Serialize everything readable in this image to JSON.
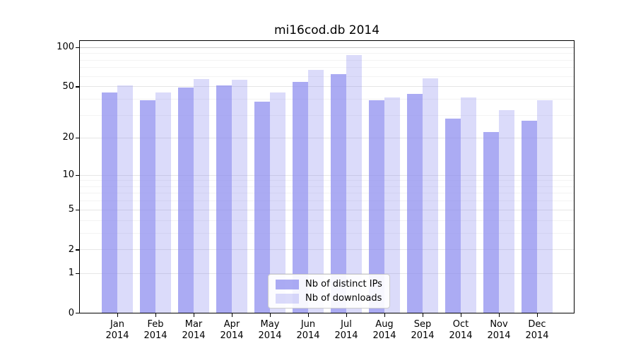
{
  "chart_data": {
    "type": "bar",
    "title": "mi16cod.db 2014",
    "months": [
      "Jan",
      "Feb",
      "Mar",
      "Apr",
      "May",
      "Jun",
      "Jul",
      "Aug",
      "Sep",
      "Oct",
      "Nov",
      "Dec"
    ],
    "year_label": "2014",
    "series": [
      {
        "name": "Nb of distinct IPs",
        "color": "rgba(136,136,238,0.7)",
        "values": [
          45,
          39,
          49,
          51,
          38,
          54,
          62,
          39,
          44,
          28,
          22,
          27
        ]
      },
      {
        "name": "Nb of downloads",
        "color": "rgba(136,136,238,0.3)",
        "values": [
          51,
          45,
          57,
          56,
          45,
          67,
          87,
          41,
          58,
          41,
          33,
          39
        ]
      }
    ],
    "y_scale": "log1p",
    "y_ticks": [
      0,
      1,
      2,
      5,
      10,
      20,
      50,
      100
    ],
    "y_minor_ticks": [
      3,
      4,
      6,
      7,
      8,
      9,
      30,
      40,
      60,
      70,
      80,
      90
    ],
    "ylim": [
      0,
      111
    ],
    "grid": true,
    "legend_position": "lower center",
    "colors": {
      "bar_base": "#8888ee",
      "grid_major": "#e6e6e6",
      "grid_top": "#c9c9c9",
      "grid_minor": "#f3f3f3",
      "axis": "#000000"
    }
  }
}
